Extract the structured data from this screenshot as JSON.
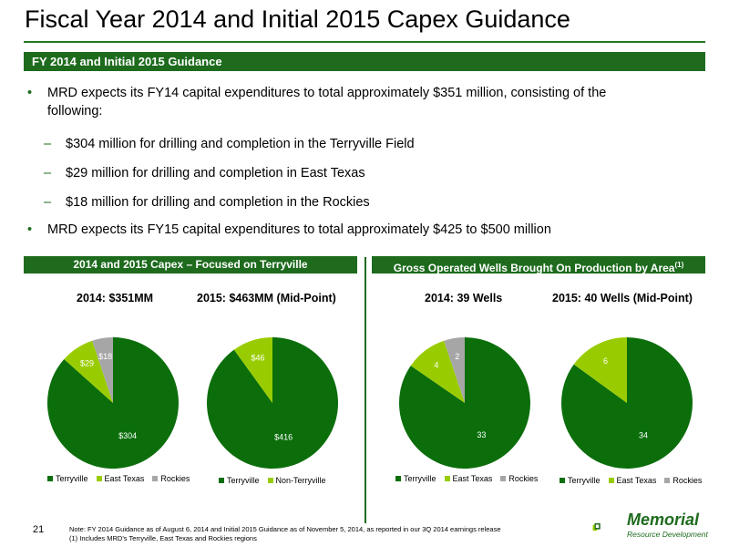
{
  "title": "Fiscal Year 2014 and Initial 2015 Capex Guidance",
  "banner": "FY 2014 and Initial 2015 Guidance",
  "bullets": [
    {
      "type": "main",
      "marker": "•",
      "lines": [
        "MRD expects its FY14 capital expenditures to total approximately $351 million, consisting of the",
        "following:"
      ]
    },
    {
      "type": "sub",
      "marker": "–",
      "lines": [
        "$304 million for drilling and completion in the Terryville Field"
      ]
    },
    {
      "type": "sub",
      "marker": "–",
      "lines": [
        "$29 million for drilling and completion in East Texas"
      ]
    },
    {
      "type": "sub",
      "marker": "–",
      "lines": [
        "$18 million for drilling and completion in the Rockies"
      ]
    },
    {
      "type": "main",
      "marker": "•",
      "lines": [
        "MRD expects its FY15 capital expenditures to total approximately $425 to $500 million"
      ]
    }
  ],
  "left_panel": {
    "heading": "2014 and 2015 Capex – Focused on Terryville"
  },
  "right_panel": {
    "heading": "Gross Operated Wells Brought On Production by Area",
    "heading_sup": "(1)"
  },
  "colors": {
    "green": "#1e6b1e",
    "dark_green": "#0b6e0b",
    "light_green": "#99cc00",
    "gray": "#a6a6a6"
  },
  "chart_data": [
    {
      "type": "pie",
      "title": "2014: $351MM",
      "categories": [
        "Terryville",
        "East Texas",
        "Rockies"
      ],
      "values": [
        304,
        29,
        18
      ],
      "labels": [
        "$304",
        "$29",
        "$18"
      ],
      "colors": [
        "#0b6e0b",
        "#99cc00",
        "#a6a6a6"
      ]
    },
    {
      "type": "pie",
      "title": "2015: $463MM (Mid-Point)",
      "categories": [
        "Terryville",
        "Non-Terryville"
      ],
      "values": [
        416,
        46
      ],
      "labels": [
        "$416",
        "$46"
      ],
      "colors": [
        "#0b6e0b",
        "#99cc00"
      ]
    },
    {
      "type": "pie",
      "title": "2014: 39 Wells",
      "categories": [
        "Terryville",
        "East Texas",
        "Rockies"
      ],
      "values": [
        33,
        4,
        2
      ],
      "labels": [
        "33",
        "4",
        "2"
      ],
      "colors": [
        "#0b6e0b",
        "#99cc00",
        "#a6a6a6"
      ]
    },
    {
      "type": "pie",
      "title": "2015: 40 Wells (Mid-Point)",
      "categories": [
        "Terryville",
        "East Texas",
        "Rockies"
      ],
      "values": [
        34,
        6,
        0
      ],
      "labels": [
        "34",
        "6",
        ""
      ],
      "colors": [
        "#0b6e0b",
        "#99cc00",
        "#a6a6a6"
      ]
    }
  ],
  "page_number": "21",
  "notes": [
    "Note: FY 2014 Guidance as of August 6, 2014 and Initial 2015 Guidance as of November 5, 2014, as reported in our 3Q 2014 earnings release",
    "(1)  Includes MRD's Terryville, East Texas and Rockies regions"
  ],
  "logo": {
    "name": "Memorial",
    "tagline": "Resource Development"
  }
}
